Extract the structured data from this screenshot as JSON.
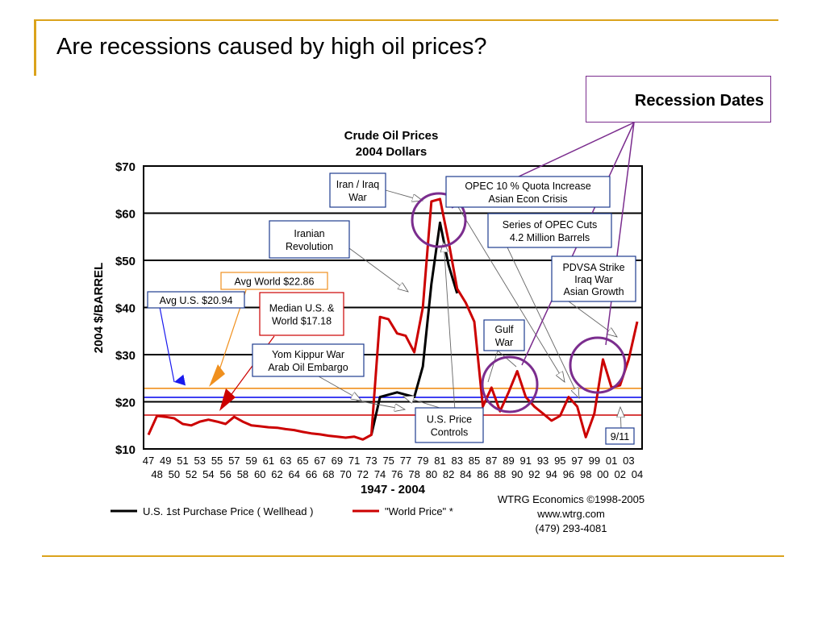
{
  "slide": {
    "title": "Are recessions caused by high oil prices?",
    "recession_label": "Recession Dates",
    "colors": {
      "accent_gold": "#dba31c",
      "recession_purple": "#7b2d8e"
    }
  },
  "chart_data": {
    "type": "line",
    "title": "Crude Oil Prices",
    "subtitle": "2004 Dollars",
    "xlabel": "1947 - 2004",
    "ylabel": "2004 $/BARREL",
    "ylim": [
      10,
      70
    ],
    "y_ticks": [
      "$70",
      "$60",
      "$50",
      "$40",
      "$30",
      "$20",
      "$10"
    ],
    "y_tick_values": [
      70,
      60,
      50,
      40,
      30,
      20,
      10
    ],
    "x_ticks_odd": [
      "47",
      "49",
      "51",
      "53",
      "55",
      "57",
      "59",
      "61",
      "63",
      "65",
      "67",
      "69",
      "71",
      "73",
      "75",
      "77",
      "79",
      "81",
      "83",
      "85",
      "87",
      "89",
      "91",
      "93",
      "95",
      "97",
      "99",
      "01",
      "03"
    ],
    "x_ticks_even": [
      "48",
      "50",
      "52",
      "54",
      "56",
      "58",
      "60",
      "62",
      "64",
      "66",
      "68",
      "70",
      "72",
      "74",
      "76",
      "78",
      "80",
      "82",
      "84",
      "86",
      "88",
      "90",
      "92",
      "94",
      "96",
      "98",
      "00",
      "02",
      "04"
    ],
    "x_years": [
      1947,
      1948,
      1949,
      1950,
      1951,
      1952,
      1953,
      1954,
      1955,
      1956,
      1957,
      1958,
      1959,
      1960,
      1961,
      1962,
      1963,
      1964,
      1965,
      1966,
      1967,
      1968,
      1969,
      1970,
      1971,
      1972,
      1973,
      1974,
      1975,
      1976,
      1977,
      1978,
      1979,
      1980,
      1981,
      1982,
      1983,
      1984,
      1985,
      1986,
      1987,
      1988,
      1989,
      1990,
      1991,
      1992,
      1993,
      1994,
      1995,
      1996,
      1997,
      1998,
      1999,
      2000,
      2001,
      2002,
      2003,
      2004
    ],
    "series": [
      {
        "name": "U.S. 1st Purchase Price ( Wellhead )",
        "color": "#000000",
        "values": [
          null,
          null,
          null,
          null,
          null,
          null,
          null,
          null,
          null,
          null,
          null,
          null,
          null,
          null,
          null,
          null,
          null,
          null,
          null,
          null,
          null,
          null,
          null,
          null,
          null,
          null,
          13,
          21,
          21.5,
          22,
          21.5,
          21,
          27.5,
          45,
          58,
          49,
          43,
          null,
          null,
          null,
          null,
          null,
          null,
          null,
          null,
          null,
          null,
          null,
          null,
          null,
          null,
          null,
          null,
          null,
          null,
          null,
          null,
          null
        ]
      },
      {
        "name": "\"World Price\" *",
        "color": "#cc0000",
        "values": [
          13,
          17,
          16.8,
          16.5,
          15.3,
          15,
          15.8,
          16.2,
          15.8,
          15.3,
          16.8,
          15.8,
          15,
          14.8,
          14.6,
          14.5,
          14.2,
          14,
          13.6,
          13.3,
          13.1,
          12.8,
          12.6,
          12.4,
          12.6,
          12,
          13,
          38,
          37.5,
          34.5,
          34,
          30.5,
          40,
          62.5,
          63,
          54,
          44,
          41,
          37,
          19,
          23,
          18,
          22,
          26.5,
          21,
          19,
          17.5,
          16,
          17,
          21,
          19,
          12.5,
          17.5,
          29,
          23,
          23.5,
          29,
          37
        ]
      }
    ],
    "reference_lines": [
      {
        "label": "Avg World $22.86",
        "value": 22.86,
        "color": "#f0901e"
      },
      {
        "label": "Avg U.S. $20.94",
        "value": 20.94,
        "color": "#0000ee"
      },
      {
        "label": "Median U.S. & World  $17.18",
        "value": 17.18,
        "color": "#cc0000"
      }
    ],
    "annotations": [
      {
        "id": "iran-iraq-war",
        "lines": [
          "Iran / Iraq",
          "War"
        ]
      },
      {
        "id": "opec-quota",
        "lines": [
          "OPEC 10 % Quota Increase",
          "Asian Econ Crisis"
        ]
      },
      {
        "id": "iranian-revolution",
        "lines": [
          "Iranian",
          "Revolution"
        ]
      },
      {
        "id": "opec-cuts",
        "lines": [
          "Series of OPEC Cuts",
          "4.2 Million Barrels"
        ]
      },
      {
        "id": "pdvsa",
        "lines": [
          "PDVSA Strike",
          "Iraq War",
          "Asian Growth"
        ]
      },
      {
        "id": "avg-world",
        "lines": [
          "Avg World $22.86"
        ]
      },
      {
        "id": "avg-us",
        "lines": [
          "Avg U.S. $20.94"
        ]
      },
      {
        "id": "median",
        "lines": [
          "Median U.S. &",
          "World  $17.18"
        ]
      },
      {
        "id": "gulf-war",
        "lines": [
          "Gulf",
          "War"
        ]
      },
      {
        "id": "yom-kippur",
        "lines": [
          "Yom Kippur War",
          "Arab Oil Embargo"
        ]
      },
      {
        "id": "price-controls",
        "lines": [
          "U.S. Price",
          "Controls"
        ]
      },
      {
        "id": "nine-eleven",
        "lines": [
          "9/11"
        ]
      }
    ],
    "legend": {
      "placement": "bottom",
      "items": [
        "U.S. 1st Purchase Price ( Wellhead )",
        "\"World Price\" *"
      ]
    },
    "credit": [
      "WTRG Economics  ©1998-2005",
      "www.wtrg.com",
      "(479) 293-4081"
    ]
  }
}
